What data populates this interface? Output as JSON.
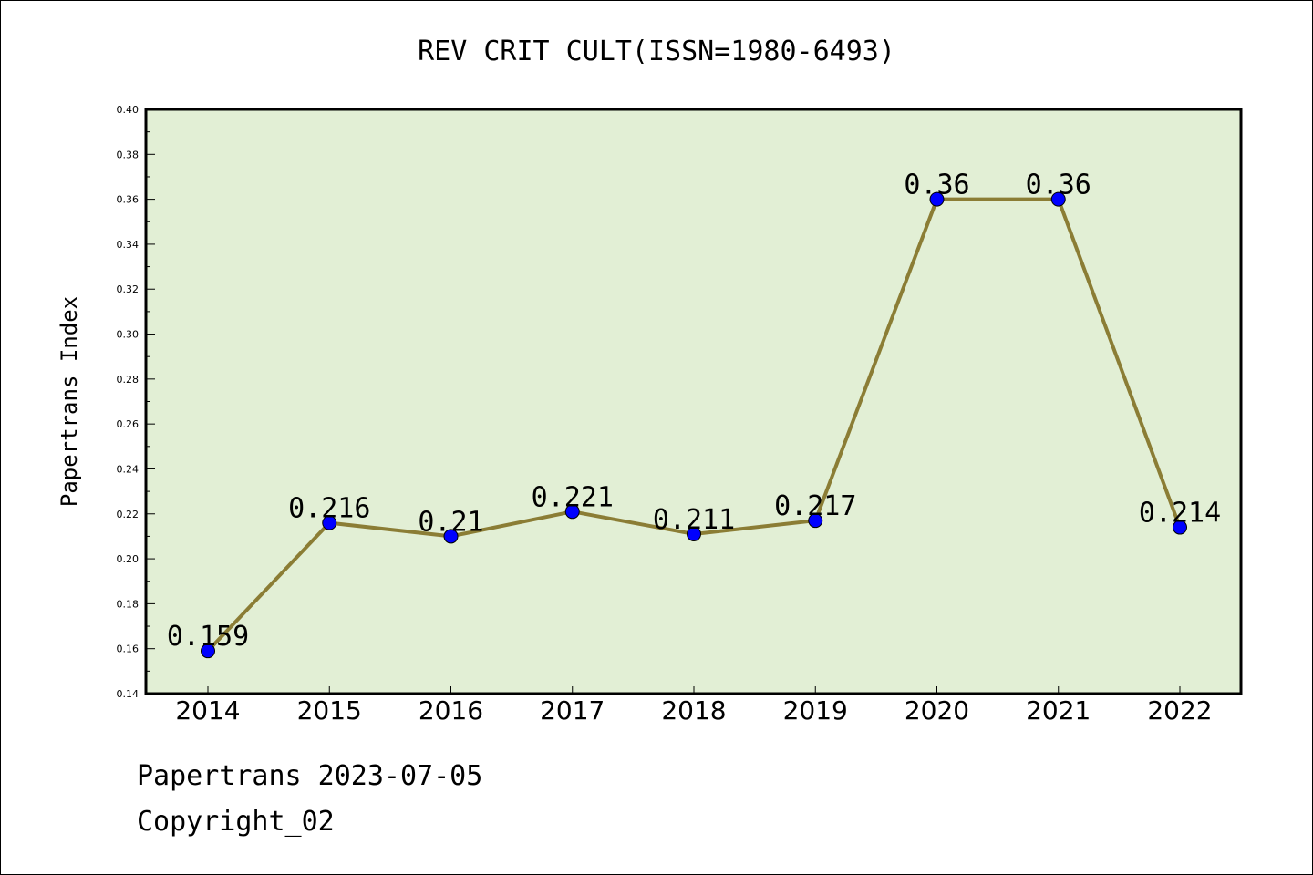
{
  "chart_data": {
    "type": "line",
    "title": "REV CRIT CULT(ISSN=1980-6493)",
    "xlabel": "",
    "ylabel": "Papertrans Index",
    "categories": [
      "2014",
      "2015",
      "2016",
      "2017",
      "2018",
      "2019",
      "2020",
      "2021",
      "2022"
    ],
    "series": [
      {
        "values": [
          0.159,
          0.216,
          0.21,
          0.221,
          0.211,
          0.217,
          0.36,
          0.36,
          0.214
        ],
        "data_labels": [
          "0.159",
          "0.216",
          "0.21",
          "0.221",
          "0.211",
          "0.217",
          "0.36",
          "0.36",
          "0.214"
        ]
      }
    ],
    "ylim": [
      0.14,
      0.4
    ],
    "yticks": [
      "0.14",
      "0.16",
      "0.18",
      "0.20",
      "0.22",
      "0.24",
      "0.26",
      "0.28",
      "0.30",
      "0.32",
      "0.34",
      "0.36",
      "0.38",
      "0.40"
    ],
    "grid": false,
    "legend": "none",
    "colors": {
      "plot_background": "#e2efd5",
      "line": "#8b7d35",
      "marker": "#0000ff"
    }
  },
  "footer": {
    "source": "Papertrans 2023-07-05",
    "copyright": "Copyright_02"
  }
}
